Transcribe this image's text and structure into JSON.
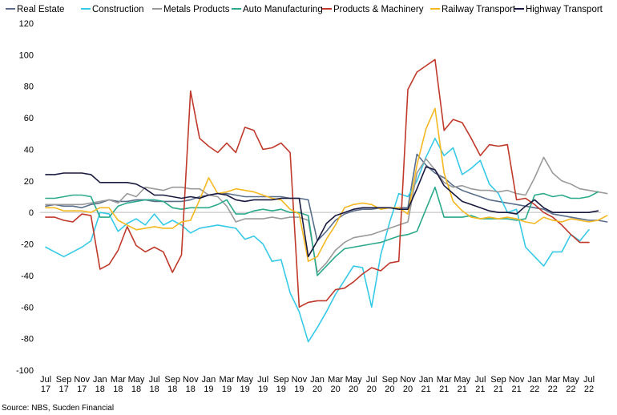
{
  "chart_data": {
    "type": "line",
    "title": "",
    "xlabel": "",
    "ylabel": "",
    "ylim": [
      -100,
      120
    ],
    "yticks": [
      -100,
      -80,
      -60,
      -40,
      -20,
      0,
      20,
      40,
      60,
      80,
      100,
      120
    ],
    "grid": false,
    "legend_position": "top",
    "source": "Source: NBS, Sucden Financial",
    "x_tick_labels": [
      {
        "idx": 0,
        "month": "Jul",
        "year": "17"
      },
      {
        "idx": 2,
        "month": "Sep",
        "year": "17"
      },
      {
        "idx": 4,
        "month": "Nov",
        "year": "17"
      },
      {
        "idx": 6,
        "month": "Jan",
        "year": "18"
      },
      {
        "idx": 8,
        "month": "Mar",
        "year": "18"
      },
      {
        "idx": 10,
        "month": "May",
        "year": "18"
      },
      {
        "idx": 12,
        "month": "Jul",
        "year": "18"
      },
      {
        "idx": 14,
        "month": "Sep",
        "year": "18"
      },
      {
        "idx": 16,
        "month": "Nov",
        "year": "18"
      },
      {
        "idx": 18,
        "month": "Jan",
        "year": "19"
      },
      {
        "idx": 20,
        "month": "Mar",
        "year": "19"
      },
      {
        "idx": 22,
        "month": "May",
        "year": "19"
      },
      {
        "idx": 24,
        "month": "Jul",
        "year": "19"
      },
      {
        "idx": 26,
        "month": "Sep",
        "year": "19"
      },
      {
        "idx": 28,
        "month": "Nov",
        "year": "19"
      },
      {
        "idx": 30,
        "month": "Jan",
        "year": "20"
      },
      {
        "idx": 32,
        "month": "Mar",
        "year": "20"
      },
      {
        "idx": 34,
        "month": "May",
        "year": "20"
      },
      {
        "idx": 36,
        "month": "Jul",
        "year": "20"
      },
      {
        "idx": 38,
        "month": "Sep",
        "year": "20"
      },
      {
        "idx": 40,
        "month": "Nov",
        "year": "20"
      },
      {
        "idx": 42,
        "month": "Jan",
        "year": "21"
      },
      {
        "idx": 44,
        "month": "Mar",
        "year": "21"
      },
      {
        "idx": 46,
        "month": "May",
        "year": "21"
      },
      {
        "idx": 48,
        "month": "Jul",
        "year": "21"
      },
      {
        "idx": 50,
        "month": "Sep",
        "year": "21"
      },
      {
        "idx": 52,
        "month": "Nov",
        "year": "21"
      },
      {
        "idx": 54,
        "month": "Jan",
        "year": "22"
      },
      {
        "idx": 56,
        "month": "Mar",
        "year": "22"
      },
      {
        "idx": 58,
        "month": "May",
        "year": "22"
      },
      {
        "idx": 60,
        "month": "Jul",
        "year": "22"
      }
    ],
    "series": [
      {
        "name": "Real Estate",
        "color": "#5a6e8c",
        "values": [
          4,
          5,
          4,
          4,
          3,
          5,
          6,
          8,
          7,
          7,
          8,
          8,
          7,
          7,
          7,
          7,
          8,
          10,
          11,
          12,
          12,
          11,
          10,
          10,
          10,
          10,
          10,
          9,
          9,
          8,
          -18,
          -12,
          -5,
          -1,
          1,
          2,
          2,
          3,
          3,
          3,
          3,
          37,
          30,
          25,
          22,
          17,
          14,
          12,
          10,
          8,
          7,
          6,
          5,
          4,
          3,
          2,
          -1,
          -2,
          -3,
          -4,
          -5,
          -5,
          -6
        ]
      },
      {
        "name": "Construction",
        "color": "#36c9e8",
        "values": [
          -22,
          -25,
          -28,
          -25,
          -22,
          -18,
          0,
          -1,
          -12,
          -7,
          -4,
          -8,
          -1,
          -8,
          -5,
          -8,
          -13,
          -10,
          -9,
          -8,
          -9,
          -10,
          -17,
          -15,
          -20,
          -31,
          -30,
          -51,
          -63,
          -82,
          -73,
          -63,
          -52,
          -43,
          -34,
          -35,
          -60,
          -27,
          -6,
          12,
          10,
          20,
          35,
          47,
          36,
          41,
          24,
          28,
          33,
          18,
          12,
          0,
          2,
          -22,
          -28,
          -34,
          -25,
          -25,
          -14,
          -18,
          -11,
          null,
          null
        ]
      },
      {
        "name": "Metals Products",
        "color": "#9a9a9a",
        "values": [
          5,
          5,
          5,
          5,
          5,
          6,
          7,
          8,
          6,
          12,
          10,
          16,
          15,
          14,
          16,
          16,
          15,
          15,
          11,
          10,
          4,
          -6,
          -4,
          -4,
          -4,
          -3,
          -4,
          -3,
          -3,
          -5,
          -38,
          -32,
          -24,
          -19,
          -16,
          -15,
          -14,
          -12,
          -10,
          -8,
          -6,
          25,
          34,
          27,
          19,
          16,
          17,
          15,
          14,
          14,
          13,
          14,
          12,
          11,
          22,
          35,
          25,
          20,
          18,
          15,
          14,
          13,
          12
        ]
      },
      {
        "name": "Auto Manufacturing",
        "color": "#2aa98b",
        "values": [
          9,
          9,
          10,
          11,
          11,
          10,
          -3,
          -3,
          4,
          6,
          7,
          8,
          8,
          7,
          3,
          2,
          3,
          3,
          3,
          5,
          8,
          -1,
          -1,
          1,
          2,
          1,
          2,
          0,
          0,
          -2,
          -40,
          -34,
          -28,
          -23,
          -22,
          -21,
          -20,
          -19,
          -17,
          -15,
          -14,
          -12,
          2,
          16,
          -3,
          -3,
          -3,
          -2,
          -4,
          -4,
          -4,
          -4,
          -5,
          -4,
          11,
          12,
          10,
          11,
          9,
          9,
          10,
          13,
          null
        ]
      },
      {
        "name": "Products & Machinery",
        "color": "#c0392b",
        "values": [
          -3,
          -3,
          -5,
          -6,
          -1,
          -2,
          -36,
          -33,
          -24,
          -9,
          -21,
          -25,
          -22,
          -25,
          -38,
          -27,
          77,
          47,
          42,
          38,
          44,
          38,
          54,
          52,
          40,
          41,
          44,
          38,
          -60,
          -57,
          -56,
          -56,
          -49,
          -48,
          -44,
          -39,
          -35,
          -37,
          -32,
          -31,
          78,
          89,
          93,
          97,
          52,
          59,
          57,
          47,
          36,
          43,
          42,
          43,
          8,
          9,
          5,
          0,
          -3,
          -8,
          -14,
          -19,
          -19,
          null,
          null
        ]
      },
      {
        "name": "Railway Transport",
        "color": "#f5b820",
        "values": [
          3,
          3,
          1,
          1,
          1,
          0,
          3,
          3,
          -5,
          -8,
          -11,
          -10,
          -9,
          -10,
          -10,
          -6,
          -5,
          8,
          22,
          12,
          13,
          15,
          14,
          13,
          11,
          9,
          8,
          2,
          -1,
          -31,
          -28,
          -17,
          -8,
          3,
          5,
          6,
          5,
          2,
          3,
          3,
          -1,
          30,
          53,
          66,
          25,
          7,
          1,
          -3,
          -4,
          -3,
          -4,
          -3,
          -4,
          -6,
          -7,
          -3,
          -5,
          -6,
          -4,
          -5,
          -6,
          -5,
          -2
        ]
      },
      {
        "name": "Highway Transport",
        "color": "#1a1a40",
        "values": [
          24,
          24,
          25,
          25,
          25,
          24,
          19,
          19,
          19,
          19,
          18,
          15,
          11,
          11,
          10,
          9,
          10,
          9,
          11,
          12,
          11,
          8,
          7,
          8,
          8,
          8,
          9,
          9,
          9,
          -28,
          -18,
          -7,
          -2,
          0,
          2,
          3,
          3,
          3,
          3,
          2,
          2,
          15,
          29,
          27,
          17,
          12,
          7,
          5,
          3,
          1,
          0,
          0,
          -1,
          4,
          8,
          3,
          0,
          0,
          0,
          0,
          0,
          1,
          null
        ]
      }
    ]
  }
}
